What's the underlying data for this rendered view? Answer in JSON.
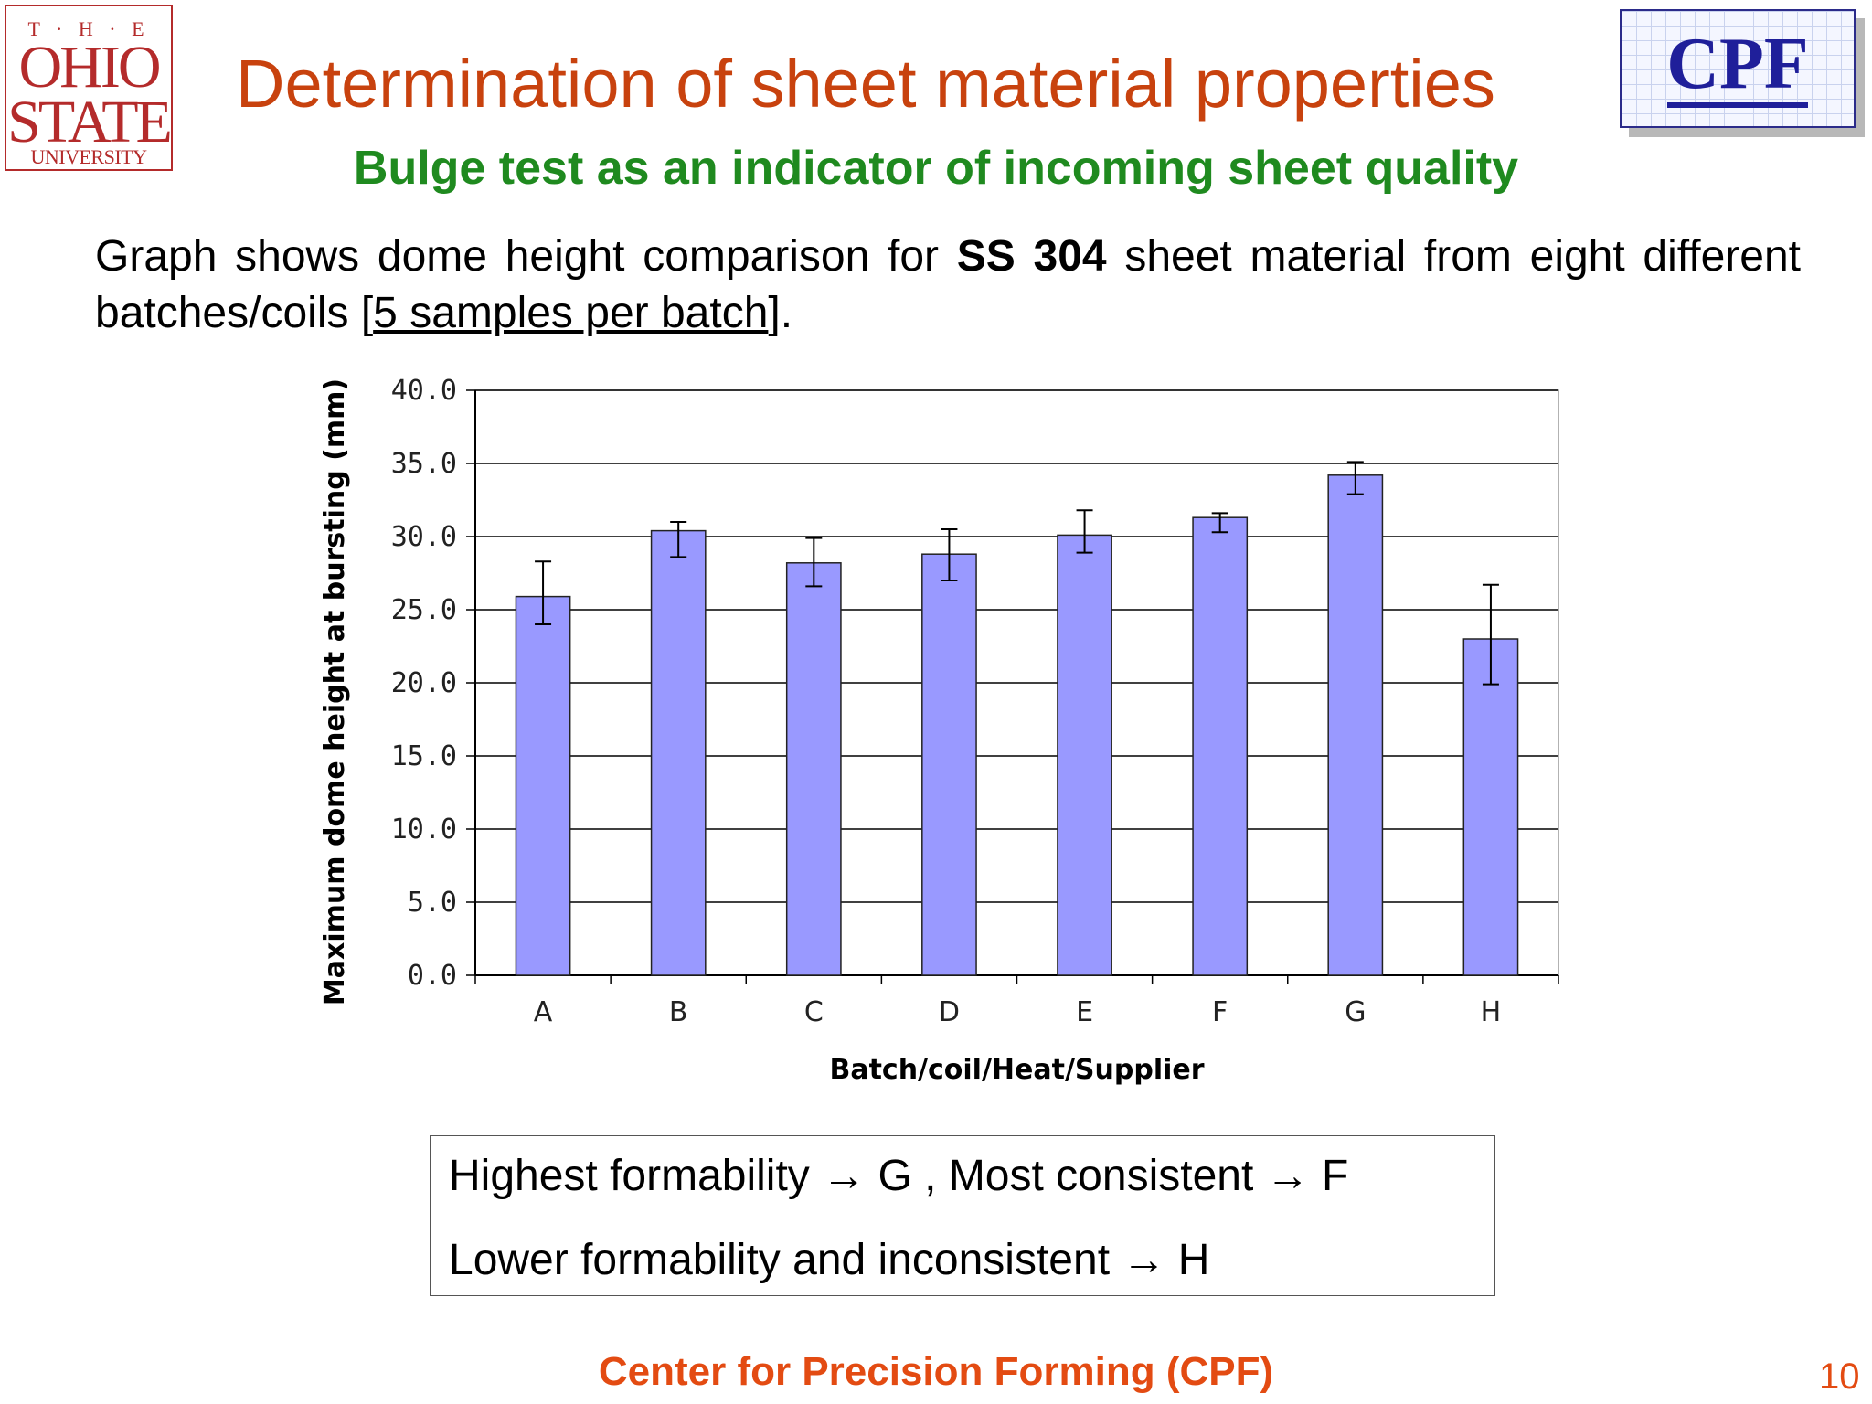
{
  "logos": {
    "osu": {
      "the": "T · H · E",
      "ohio": "OHIO",
      "state": "STATE",
      "university": "UNIVERSITY"
    },
    "cpf": {
      "text": "CPF"
    }
  },
  "header": {
    "title": "Determination of sheet material properties",
    "subtitle": "Bulge test as an indicator of incoming sheet quality"
  },
  "description": {
    "part1": "Graph shows dome height comparison for ",
    "bold": "SS 304",
    "part2": " sheet material from eight different batches/coils [",
    "underlined": "5 samples per batch",
    "part3": "]."
  },
  "chart_data": {
    "type": "bar",
    "categories": [
      "A",
      "B",
      "C",
      "D",
      "E",
      "F",
      "G",
      "H"
    ],
    "values": [
      25.9,
      30.4,
      28.2,
      28.8,
      30.1,
      31.3,
      34.2,
      23.0
    ],
    "error_low": [
      24.0,
      28.6,
      26.6,
      27.0,
      28.9,
      30.3,
      32.9,
      19.9
    ],
    "error_high": [
      28.3,
      31.0,
      29.9,
      30.5,
      31.8,
      31.6,
      35.1,
      26.7
    ],
    "xlabel": "Batch/coil/Heat/Supplier",
    "ylabel": "Maximum dome height at bursting (mm)",
    "ylim": [
      0,
      40
    ],
    "yticks": [
      "0.0",
      "5.0",
      "10.0",
      "15.0",
      "20.0",
      "25.0",
      "30.0",
      "35.0",
      "40.0"
    ],
    "grid": true,
    "bar_color": "#9999ff"
  },
  "conclusion": {
    "line1": "Highest formability → G , Most consistent → F",
    "line2": "Lower formability and inconsistent → H"
  },
  "footer": {
    "text": "Center for Precision Forming (CPF)",
    "page": "10"
  }
}
